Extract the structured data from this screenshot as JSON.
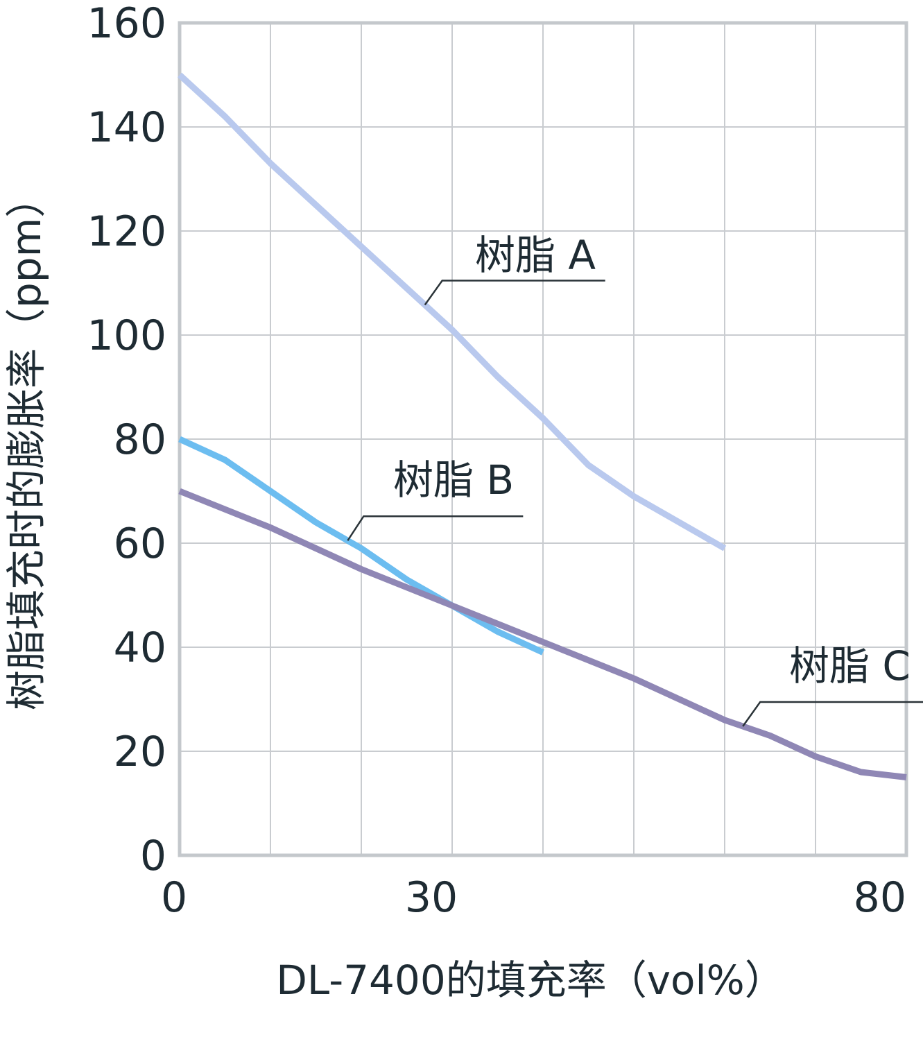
{
  "chart_data": {
    "type": "line",
    "xlabel": "DL-7400的填充率（vol%）",
    "ylabel": "树脂填充时的膨胀率（ppm）",
    "xlim": [
      0,
      80
    ],
    "ylim": [
      0,
      160
    ],
    "x_ticks": [
      0,
      30,
      80
    ],
    "y_ticks": [
      0,
      20,
      40,
      60,
      80,
      100,
      120,
      140,
      160
    ],
    "grid": true,
    "series": [
      {
        "name": "树脂 A",
        "color": "#b9c9ee",
        "x": [
          0,
          5,
          10,
          15,
          20,
          25,
          30,
          35,
          40,
          45,
          50,
          55,
          60
        ],
        "y": [
          150,
          142,
          133,
          125,
          117,
          109,
          101,
          92,
          84,
          75,
          69,
          64,
          59
        ]
      },
      {
        "name": "树脂 B",
        "color": "#6cbdf0",
        "x": [
          0,
          5,
          10,
          15,
          20,
          25,
          30,
          35,
          40
        ],
        "y": [
          80,
          76,
          70,
          64,
          59,
          53,
          48,
          43,
          39
        ]
      },
      {
        "name": "树脂 C",
        "color": "#8f87b5",
        "x": [
          0,
          10,
          20,
          30,
          40,
          50,
          55,
          60,
          65,
          70,
          75,
          80
        ],
        "y": [
          70,
          63,
          55,
          48,
          41,
          34,
          30,
          26,
          23,
          19,
          16,
          15
        ]
      }
    ]
  }
}
